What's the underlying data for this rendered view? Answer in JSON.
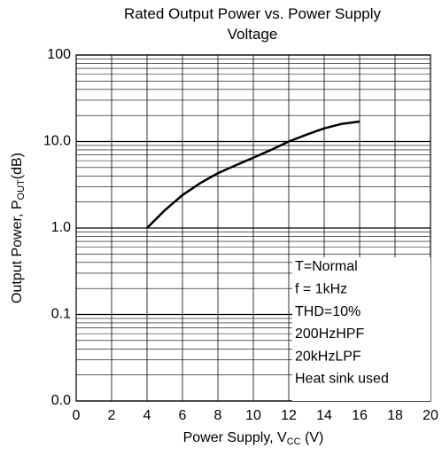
{
  "chart_data": {
    "type": "line",
    "title": "Rated Output Power vs. Power Supply Voltage",
    "xlabel": [
      "Power Supply, V",
      "CC",
      " (V)"
    ],
    "ylabel": [
      "Output Power, P",
      "OUT",
      "(dB)"
    ],
    "x": [
      4,
      5,
      6,
      7,
      8,
      9,
      10,
      11,
      12,
      13,
      14,
      15,
      16
    ],
    "series": [
      {
        "name": "Output Power",
        "color": "#000000",
        "values": [
          1.0,
          1.6,
          2.4,
          3.3,
          4.3,
          5.3,
          6.5,
          8.0,
          10.0,
          12.0,
          14.2,
          16.0,
          17.0
        ]
      }
    ],
    "xlim": [
      0,
      20
    ],
    "xticks": [
      0,
      2,
      4,
      6,
      8,
      10,
      12,
      14,
      16,
      18,
      20
    ],
    "ylim": [
      0.01,
      100
    ],
    "yticks": [
      {
        "value": 0.01,
        "label": "0.0"
      },
      0.1,
      {
        "value": 1,
        "label": "1.0"
      },
      {
        "value": 10,
        "label": "10.0"
      },
      100
    ],
    "ylog": true,
    "grid": true,
    "minor_grid": true,
    "annotations": [
      "T=Normal",
      "f = 1kHz",
      "THD=10%",
      "200HzHPF",
      "20kHzLPF",
      "Heat sink used"
    ]
  }
}
